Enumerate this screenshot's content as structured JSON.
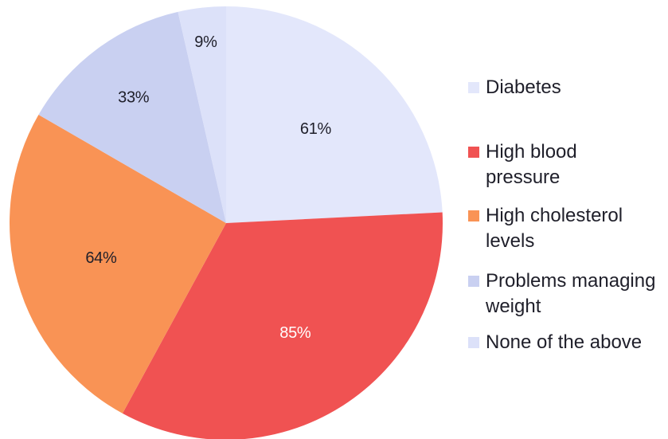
{
  "chart_data": {
    "type": "pie",
    "title": "",
    "legend_position": "right",
    "slices": [
      {
        "label": "Diabetes",
        "value": 61,
        "display": "61%",
        "color": "#e3e7fb",
        "text_color": "#1f1f2a"
      },
      {
        "label": "High blood pressure",
        "value": 85,
        "display": "85%",
        "color": "#f05252",
        "text_color": "#ffffff"
      },
      {
        "label": "High cholesterol levels",
        "value": 64,
        "display": "64%",
        "color": "#f99355",
        "text_color": "#1f1f2a"
      },
      {
        "label": "Problems managing weight",
        "value": 33,
        "display": "33%",
        "color": "#c9d0f1",
        "text_color": "#1f1f2a"
      },
      {
        "label": "None of the above",
        "value": 9,
        "display": "9%",
        "color": "#dce1f9",
        "text_color": "#1f1f2a"
      }
    ]
  },
  "legend": {
    "items": [
      {
        "label": "Diabetes",
        "color": "#e3e7fb"
      },
      {
        "label": "High blood pressure",
        "color": "#f05252"
      },
      {
        "label": "High cholesterol levels",
        "color": "#f99355"
      },
      {
        "label": "Problems managing weight",
        "color": "#c9d0f1"
      },
      {
        "label": "None of the above",
        "color": "#dce1f9"
      }
    ]
  }
}
